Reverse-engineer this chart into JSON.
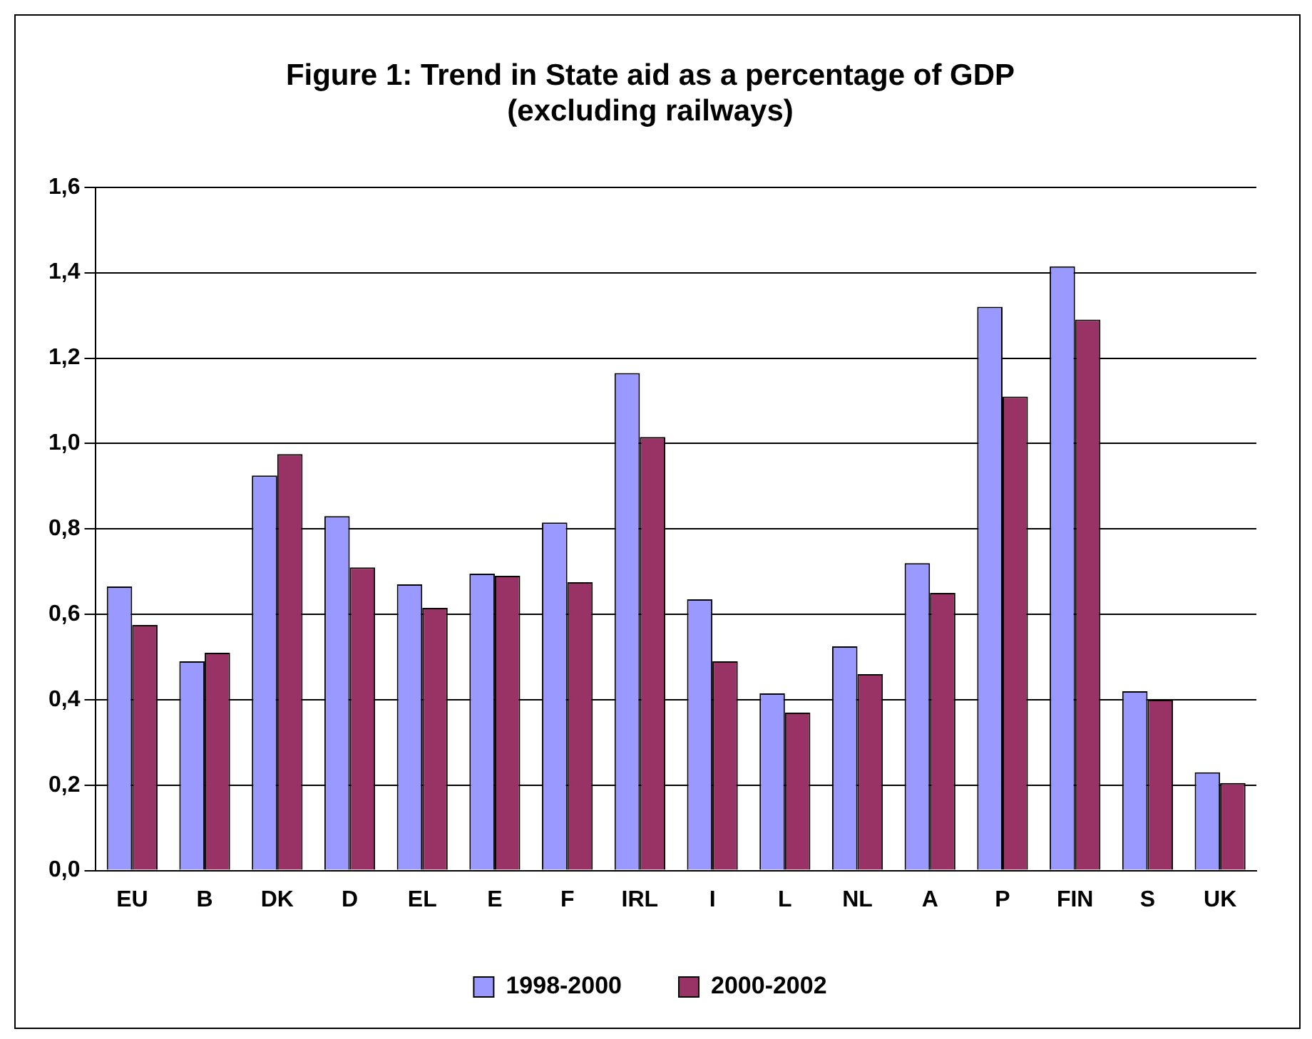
{
  "chart_data": {
    "type": "bar",
    "title": "Figure 1: Trend in State aid as a percentage of GDP\n(excluding railways)",
    "categories": [
      "EU",
      "B",
      "DK",
      "D",
      "EL",
      "E",
      "F",
      "IRL",
      "I",
      "L",
      "NL",
      "A",
      "P",
      "FIN",
      "S",
      "UK"
    ],
    "series": [
      {
        "name": "1998-2000",
        "color": "#9999ff",
        "values": [
          0.665,
          0.49,
          0.925,
          0.83,
          0.67,
          0.695,
          0.815,
          1.165,
          0.635,
          0.415,
          0.525,
          0.72,
          1.32,
          1.415,
          0.42,
          0.23
        ]
      },
      {
        "name": "2000-2002",
        "color": "#993366",
        "values": [
          0.575,
          0.51,
          0.975,
          0.71,
          0.615,
          0.69,
          0.675,
          1.015,
          0.49,
          0.37,
          0.46,
          0.65,
          1.11,
          1.29,
          0.4,
          0.205
        ]
      }
    ],
    "ylim": [
      0,
      1.6
    ],
    "yticks": [
      {
        "value": 0,
        "label": "0,0"
      },
      {
        "value": 0.2,
        "label": "0,2"
      },
      {
        "value": 0.4,
        "label": "0,4"
      },
      {
        "value": 0.6,
        "label": "0,6"
      },
      {
        "value": 0.8,
        "label": "0,8"
      },
      {
        "value": 1.0,
        "label": "1,0"
      },
      {
        "value": 1.2,
        "label": "1,2"
      },
      {
        "value": 1.4,
        "label": "1,4"
      },
      {
        "value": 1.6,
        "label": "1,6"
      }
    ],
    "grid": "y",
    "legend": "bottom"
  }
}
